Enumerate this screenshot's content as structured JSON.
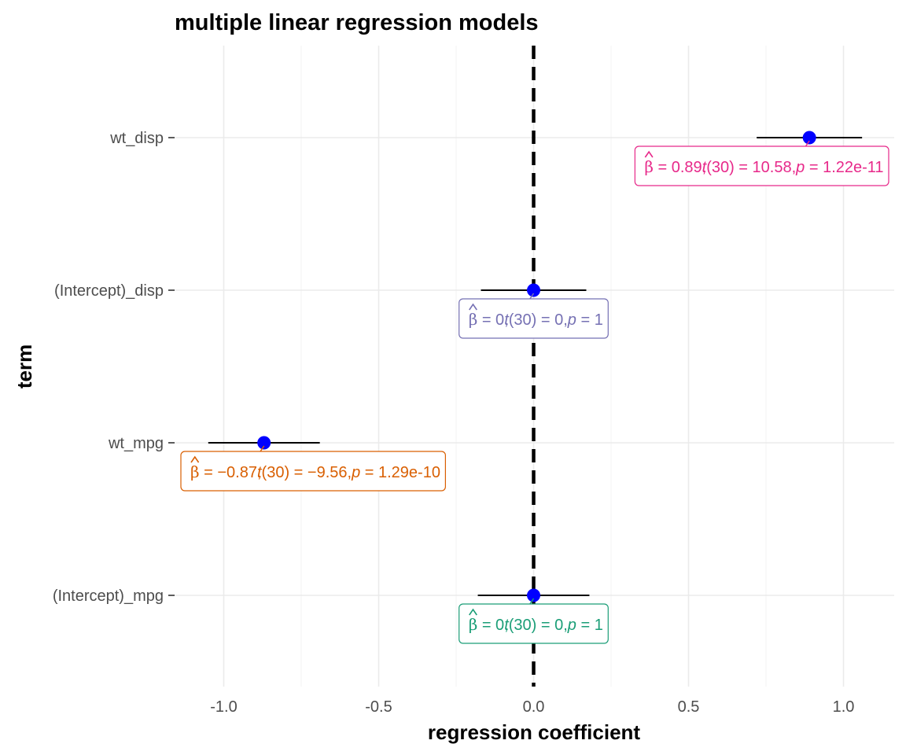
{
  "chart_data": {
    "type": "dot-whisker",
    "title": "multiple linear regression models",
    "xlabel": "regression coefficient",
    "ylabel": "term",
    "xlim": [
      -1.12,
      1.17
    ],
    "x_ticks": [
      -1.0,
      -0.5,
      0.0,
      0.5,
      1.0
    ],
    "x_tick_labels": [
      "-1.0",
      "-0.5",
      "0.0",
      "0.5",
      "1.0"
    ],
    "x_minor_ticks": [
      -0.75,
      -0.25,
      0.25,
      0.75
    ],
    "reference_line": {
      "x": 0,
      "style": "dashed",
      "color": "#000000"
    },
    "grid": true,
    "terms": [
      {
        "term": "wt_disp",
        "estimate": 0.89,
        "conf_low": 0.72,
        "conf_high": 1.06,
        "label_parts": {
          "beta": "0.89",
          "df": "30",
          "t": "10.58",
          "p": "1.22e-11"
        },
        "color": "#E7298A"
      },
      {
        "term": "(Intercept)_disp",
        "estimate": 0.0,
        "conf_low": -0.17,
        "conf_high": 0.17,
        "label_parts": {
          "beta": "0",
          "df": "30",
          "t": "0",
          "p": "1"
        },
        "color": "#7570B3"
      },
      {
        "term": "wt_mpg",
        "estimate": -0.87,
        "conf_low": -1.05,
        "conf_high": -0.69,
        "label_parts": {
          "beta": "−0.87",
          "df": "30",
          "t": "−9.56",
          "p": "1.29e-10"
        },
        "color": "#D95F02"
      },
      {
        "term": "(Intercept)_mpg",
        "estimate": 0.0,
        "conf_low": -0.18,
        "conf_high": 0.18,
        "label_parts": {
          "beta": "0",
          "df": "30",
          "t": "0",
          "p": "1"
        },
        "color": "#1B9E77"
      }
    ],
    "point_color": "#0000FF",
    "whisker_color": "#000000"
  }
}
